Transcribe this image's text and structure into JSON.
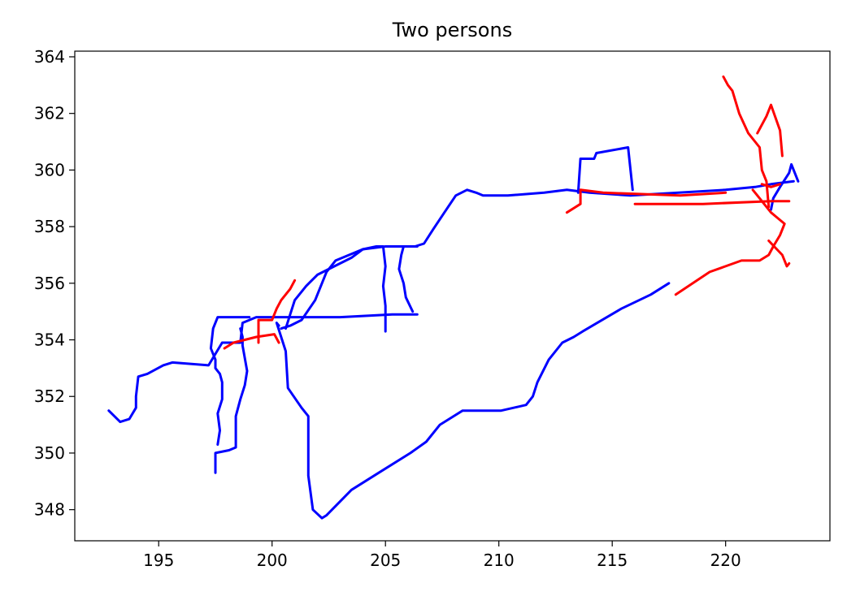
{
  "chart_data": {
    "type": "line",
    "title": "Two persons",
    "xlabel": "",
    "ylabel": "",
    "xlim": [
      191.3,
      224.6
    ],
    "ylim": [
      346.9,
      364.2
    ],
    "x_ticks": [
      195,
      200,
      205,
      210,
      215,
      220
    ],
    "y_ticks": [
      348,
      350,
      352,
      354,
      356,
      358,
      360,
      362,
      364
    ],
    "grid": false,
    "legend": "none",
    "series": [
      {
        "color": "#0000ff",
        "segments": [
          [
            [
              192.8,
              351.5
            ],
            [
              193.3,
              351.1
            ],
            [
              193.7,
              351.2
            ],
            [
              194.0,
              351.6
            ],
            [
              194.0,
              352.0
            ],
            [
              194.1,
              352.7
            ],
            [
              194.5,
              352.8
            ],
            [
              195.2,
              353.1
            ],
            [
              195.6,
              353.2
            ],
            [
              197.2,
              353.1
            ],
            [
              197.8,
              353.9
            ],
            [
              198.6,
              353.9
            ],
            [
              198.7,
              354.6
            ],
            [
              199.3,
              354.8
            ],
            [
              203.0,
              354.8
            ],
            [
              205.3,
              354.9
            ],
            [
              206.4,
              354.9
            ]
          ],
          [
            [
              197.5,
              349.3
            ],
            [
              197.5,
              350.0
            ],
            [
              198.1,
              350.1
            ],
            [
              198.4,
              350.2
            ],
            [
              198.4,
              351.3
            ],
            [
              198.6,
              351.9
            ],
            [
              198.8,
              352.4
            ],
            [
              198.9,
              352.9
            ],
            [
              198.7,
              353.8
            ],
            [
              198.7,
              354.1
            ],
            [
              198.6,
              354.4
            ]
          ],
          [
            [
              197.6,
              350.3
            ],
            [
              197.7,
              350.8
            ],
            [
              197.6,
              351.4
            ],
            [
              197.8,
              351.9
            ],
            [
              197.8,
              352.5
            ],
            [
              197.7,
              352.8
            ],
            [
              197.5,
              353.0
            ],
            [
              197.5,
              353.3
            ],
            [
              197.3,
              353.7
            ],
            [
              197.4,
              354.4
            ],
            [
              197.6,
              354.8
            ],
            [
              199.0,
              354.8
            ]
          ],
          [
            [
              205.0,
              354.3
            ],
            [
              205.0,
              355.2
            ],
            [
              204.9,
              355.9
            ],
            [
              205.0,
              356.6
            ],
            [
              204.9,
              357.3
            ],
            [
              204.6,
              357.3
            ],
            [
              204.0,
              357.2
            ],
            [
              203.5,
              356.9
            ],
            [
              202.0,
              356.3
            ],
            [
              201.5,
              355.9
            ],
            [
              201.0,
              355.4
            ],
            [
              200.8,
              354.9
            ],
            [
              200.6,
              354.4
            ]
          ],
          [
            [
              206.2,
              355.0
            ],
            [
              205.9,
              355.5
            ],
            [
              205.8,
              356.0
            ],
            [
              205.6,
              356.5
            ],
            [
              205.7,
              357.0
            ],
            [
              205.8,
              357.3
            ],
            [
              206.3,
              357.3
            ],
            [
              206.7,
              357.4
            ],
            [
              207.1,
              357.9
            ],
            [
              207.6,
              358.5
            ],
            [
              208.1,
              359.1
            ],
            [
              208.6,
              359.3
            ],
            [
              209.0,
              359.2
            ],
            [
              209.3,
              359.1
            ],
            [
              210.4,
              359.1
            ],
            [
              212.0,
              359.2
            ],
            [
              213.0,
              359.3
            ],
            [
              214.0,
              359.2
            ],
            [
              215.8,
              359.1
            ],
            [
              220.0,
              359.3
            ],
            [
              221.3,
              359.4
            ],
            [
              222.0,
              359.5
            ],
            [
              223.0,
              359.6
            ]
          ],
          [
            [
              213.5,
              359.2
            ],
            [
              213.6,
              360.4
            ],
            [
              214.2,
              360.4
            ],
            [
              214.3,
              360.6
            ],
            [
              215.7,
              360.8
            ],
            [
              215.9,
              359.3
            ]
          ],
          [
            [
              200.4,
              354.4
            ],
            [
              200.8,
              354.5
            ],
            [
              201.3,
              354.7
            ],
            [
              201.9,
              355.4
            ],
            [
              202.4,
              356.4
            ],
            [
              202.8,
              356.8
            ],
            [
              204.0,
              357.2
            ],
            [
              205.0,
              357.3
            ],
            [
              206.4,
              357.3
            ]
          ],
          [
            [
              200.3,
              354.5
            ],
            [
              200.2,
              354.6
            ],
            [
              200.6,
              353.6
            ],
            [
              200.7,
              352.3
            ],
            [
              201.3,
              351.6
            ],
            [
              201.6,
              351.3
            ],
            [
              201.6,
              349.2
            ],
            [
              201.8,
              348.0
            ],
            [
              202.2,
              347.7
            ],
            [
              202.4,
              347.8
            ],
            [
              203.5,
              348.7
            ],
            [
              204.7,
              349.3
            ],
            [
              206.1,
              350.0
            ],
            [
              206.8,
              350.4
            ],
            [
              207.4,
              351.0
            ],
            [
              208.4,
              351.5
            ],
            [
              210.1,
              351.5
            ],
            [
              211.2,
              351.7
            ],
            [
              211.5,
              352.0
            ],
            [
              211.7,
              352.5
            ],
            [
              212.2,
              353.3
            ],
            [
              212.8,
              353.9
            ],
            [
              213.3,
              354.1
            ],
            [
              213.7,
              354.3
            ],
            [
              215.4,
              355.1
            ],
            [
              216.7,
              355.6
            ],
            [
              217.5,
              356.0
            ]
          ],
          [
            [
              222.0,
              358.6
            ],
            [
              222.1,
              359.0
            ],
            [
              222.4,
              359.4
            ],
            [
              222.8,
              359.9
            ],
            [
              222.9,
              360.2
            ],
            [
              223.2,
              359.6
            ]
          ]
        ]
      },
      {
        "color": "#ff0000",
        "segments": [
          [
            [
              197.9,
              353.7
            ],
            [
              198.3,
              353.9
            ],
            [
              199.3,
              354.1
            ],
            [
              200.1,
              354.2
            ],
            [
              200.3,
              353.9
            ]
          ],
          [
            [
              199.4,
              353.9
            ],
            [
              199.4,
              354.7
            ],
            [
              200.0,
              354.7
            ],
            [
              200.2,
              355.1
            ],
            [
              200.4,
              355.4
            ],
            [
              200.8,
              355.8
            ],
            [
              201.0,
              356.1
            ]
          ],
          [
            [
              213.0,
              358.5
            ],
            [
              213.6,
              358.8
            ],
            [
              213.6,
              359.3
            ],
            [
              214.6,
              359.2
            ],
            [
              218.0,
              359.1
            ],
            [
              220.0,
              359.2
            ]
          ],
          [
            [
              216.0,
              358.8
            ],
            [
              219.0,
              358.8
            ],
            [
              222.0,
              358.9
            ],
            [
              222.8,
              358.9
            ]
          ],
          [
            [
              219.9,
              363.3
            ],
            [
              220.1,
              363.0
            ],
            [
              220.3,
              362.8
            ],
            [
              220.6,
              362.0
            ],
            [
              221.0,
              361.3
            ],
            [
              221.5,
              360.8
            ],
            [
              221.6,
              360.0
            ],
            [
              221.8,
              359.6
            ],
            [
              221.9,
              358.7
            ]
          ],
          [
            [
              221.2,
              359.3
            ],
            [
              221.5,
              359.0
            ],
            [
              222.0,
              358.5
            ],
            [
              222.3,
              358.3
            ],
            [
              222.6,
              358.1
            ],
            [
              222.4,
              357.7
            ],
            [
              222.1,
              357.3
            ],
            [
              221.9,
              357.0
            ],
            [
              221.5,
              356.8
            ],
            [
              220.7,
              356.8
            ],
            [
              219.3,
              356.4
            ],
            [
              217.8,
              355.6
            ]
          ],
          [
            [
              221.4,
              361.3
            ],
            [
              221.8,
              361.9
            ],
            [
              222.0,
              362.3
            ],
            [
              222.4,
              361.4
            ],
            [
              222.5,
              360.5
            ]
          ],
          [
            [
              221.9,
              357.5
            ],
            [
              222.5,
              357.0
            ],
            [
              222.7,
              356.6
            ],
            [
              222.8,
              356.7
            ]
          ],
          [
            [
              221.6,
              359.5
            ],
            [
              222.0,
              359.4
            ],
            [
              222.4,
              359.5
            ]
          ]
        ]
      }
    ]
  }
}
